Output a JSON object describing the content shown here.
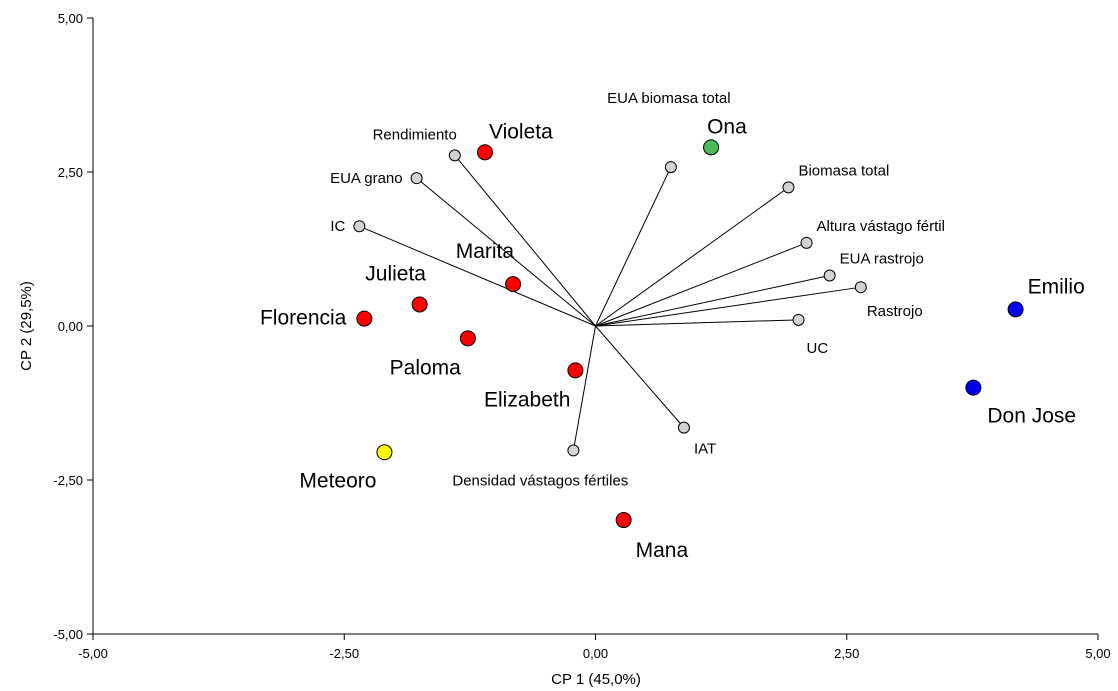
{
  "chart_data": {
    "type": "scatter",
    "title": "",
    "xlabel": "CP 1 (45,0%)",
    "ylabel": "CP 2 (29,5%)",
    "xlim": [
      -5,
      5
    ],
    "ylim": [
      -5,
      5
    ],
    "x_ticks": [
      {
        "value": -5,
        "label": "-5,00"
      },
      {
        "value": -2.5,
        "label": "-2,50"
      },
      {
        "value": 0,
        "label": "0,00"
      },
      {
        "value": 2.5,
        "label": "2,50"
      },
      {
        "value": 5,
        "label": "5,00"
      }
    ],
    "y_ticks": [
      {
        "value": -5,
        "label": "-5,00"
      },
      {
        "value": -2.5,
        "label": "-2,50"
      },
      {
        "value": 0,
        "label": "0,00"
      },
      {
        "value": 2.5,
        "label": "2,50"
      },
      {
        "value": 5,
        "label": "5,00"
      }
    ],
    "grid": false,
    "legend": "none",
    "colors": {
      "red": "#ff0000",
      "green": "#4cbb5a",
      "blue": "#0000ee",
      "yellow": "#ffff00",
      "vector": "#d3d3d3"
    },
    "genotypes": [
      {
        "label": "Violeta",
        "x": -1.1,
        "y": 2.82,
        "color": "#ff0000",
        "label_pos": "above-right"
      },
      {
        "label": "Ona",
        "x": 1.15,
        "y": 2.9,
        "color": "#4cbb5a",
        "label_pos": "above-right"
      },
      {
        "label": "Marita",
        "x": -0.82,
        "y": 0.68,
        "color": "#ff0000",
        "label_pos": "above-left"
      },
      {
        "label": "Julieta",
        "x": -1.75,
        "y": 0.35,
        "color": "#ff0000",
        "label_pos": "above"
      },
      {
        "label": "Florencia",
        "x": -2.3,
        "y": 0.12,
        "color": "#ff0000",
        "label_pos": "left"
      },
      {
        "label": "Paloma",
        "x": -1.27,
        "y": -0.2,
        "color": "#ff0000",
        "label_pos": "below-left"
      },
      {
        "label": "Elizabeth",
        "x": -0.2,
        "y": -0.72,
        "color": "#ff0000",
        "label_pos": "below-left"
      },
      {
        "label": "Meteoro",
        "x": -2.1,
        "y": -2.05,
        "color": "#ffff00",
        "label_pos": "below-left"
      },
      {
        "label": "Mana",
        "x": 0.28,
        "y": -3.15,
        "color": "#ff0000",
        "label_pos": "below-right"
      },
      {
        "label": "Emilio",
        "x": 4.18,
        "y": 0.27,
        "color": "#0000ee",
        "label_pos": "above-right"
      },
      {
        "label": "Don Jose",
        "x": 3.76,
        "y": -1.0,
        "color": "#0000ee",
        "label_pos": "below-right"
      }
    ],
    "variables": [
      {
        "label": "EUA biomasa total",
        "x": 0.75,
        "y": 2.58,
        "label_pos": "above-far"
      },
      {
        "label": "Rendimiento",
        "x": -1.4,
        "y": 2.77,
        "label_pos": "above-left"
      },
      {
        "label": "EUA grano",
        "x": -1.78,
        "y": 2.4,
        "label_pos": "left"
      },
      {
        "label": "IC",
        "x": -2.35,
        "y": 1.62,
        "label_pos": "left"
      },
      {
        "label": "Biomasa total",
        "x": 1.92,
        "y": 2.25,
        "label_pos": "above-right"
      },
      {
        "label": "Altura vástago fértil",
        "x": 2.1,
        "y": 1.35,
        "label_pos": "above-right"
      },
      {
        "label": "EUA rastrojo",
        "x": 2.33,
        "y": 0.82,
        "label_pos": "above-right"
      },
      {
        "label": "Rastrojo",
        "x": 2.64,
        "y": 0.63,
        "label_pos": "below-right"
      },
      {
        "label": "UC",
        "x": 2.02,
        "y": 0.1,
        "label_pos": "below-right"
      },
      {
        "label": "IAT",
        "x": 0.88,
        "y": -1.65,
        "label_pos": "below-right"
      },
      {
        "label": "Densidad vástagos fértiles",
        "x": -0.22,
        "y": -2.02,
        "label_pos": "below"
      }
    ]
  }
}
